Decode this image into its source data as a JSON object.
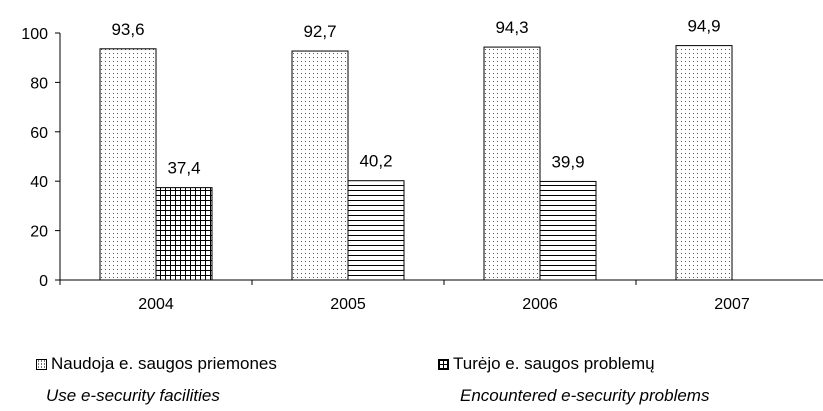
{
  "chart_data": {
    "type": "bar",
    "categories": [
      "2004",
      "2005",
      "2006",
      "2007"
    ],
    "ylim": [
      0,
      100
    ],
    "yticks": [
      "0",
      "20",
      "40",
      "60",
      "80",
      "100"
    ],
    "grid": false,
    "legend_position": "bottom",
    "series": [
      {
        "name": "Naudoja e. saugos priemones",
        "name_en": "Use e-security facilities",
        "pattern": "dots",
        "values": [
          93.6,
          92.7,
          94.3,
          94.9
        ],
        "labels": [
          "93,6",
          "92,7",
          "94,3",
          "94,9"
        ]
      },
      {
        "name": "Turėjo e. saugos problemų",
        "name_en": "Encountered e-security problems",
        "pattern": "hatch",
        "values": [
          37.4,
          40.2,
          39.9,
          null
        ],
        "labels": [
          "37,4",
          "40,2",
          "39,9",
          null
        ]
      }
    ]
  },
  "legend": {
    "item1": {
      "label": "Naudoja e. saugos priemones",
      "sublabel": "Use e-security facilities"
    },
    "item2": {
      "label": "Turėjo e. saugos problemų",
      "sublabel": "Encountered e-security problems"
    }
  }
}
